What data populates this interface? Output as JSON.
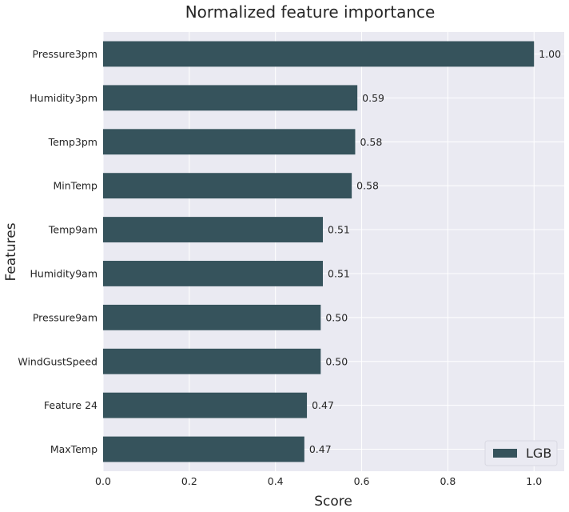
{
  "chart_data": {
    "type": "bar",
    "orientation": "horizontal",
    "title": "Normalized feature importance",
    "xlabel": "Score",
    "ylabel": "Features",
    "categories": [
      "Pressure3pm",
      "Humidity3pm",
      "Temp3pm",
      "MinTemp",
      "Temp9am",
      "Humidity9am",
      "Pressure9am",
      "WindGustSpeed",
      "Feature 24",
      "MaxTemp"
    ],
    "series": [
      {
        "name": "LGB",
        "color": "#36535c",
        "values": [
          1.0,
          0.59,
          0.585,
          0.577,
          0.51,
          0.51,
          0.505,
          0.505,
          0.473,
          0.467
        ],
        "labels": [
          "1.00",
          "0.59",
          "0.58",
          "0.58",
          "0.51",
          "0.51",
          "0.50",
          "0.50",
          "0.47",
          "0.47"
        ]
      }
    ],
    "xlim": [
      0,
      1.07
    ],
    "xticks": [
      0.0,
      0.2,
      0.4,
      0.6,
      0.8,
      1.0
    ],
    "xtick_labels": [
      "0.0",
      "0.2",
      "0.4",
      "0.6",
      "0.8",
      "1.0"
    ],
    "grid": true,
    "legend_position": "bottom-right",
    "background": "#eaeaf2"
  }
}
